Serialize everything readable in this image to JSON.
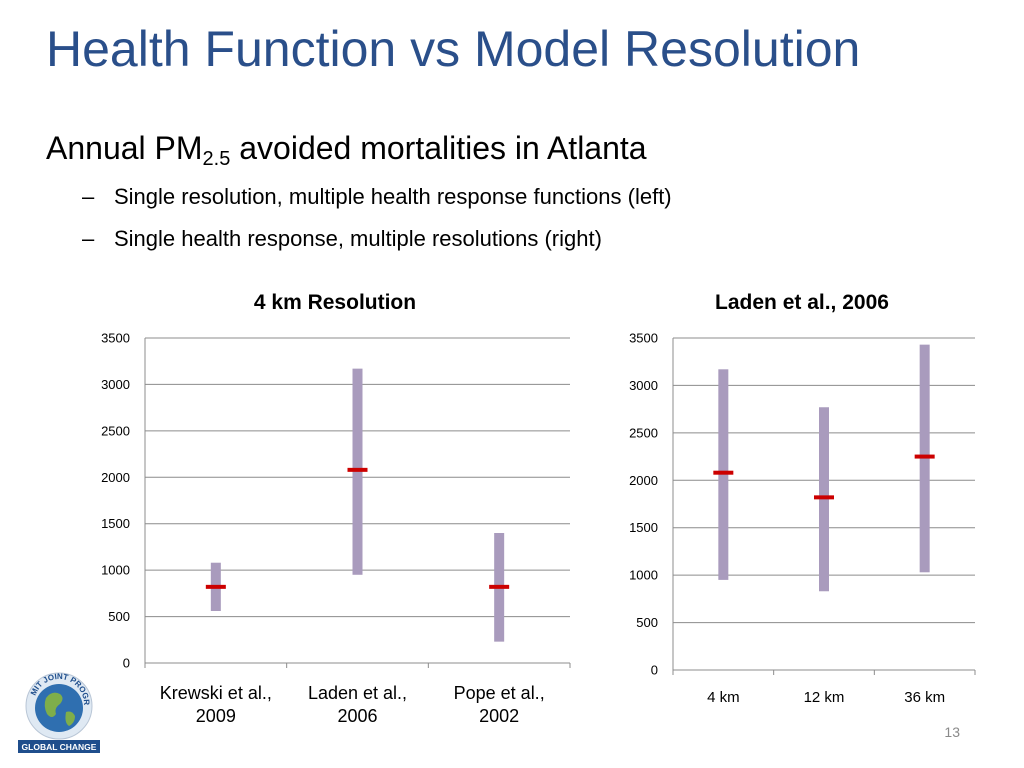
{
  "slide": {
    "title": "Health Function vs Model Resolution",
    "bullet_main": {
      "prefix": "Annual PM",
      "subscript": "2.5",
      "suffix": " avoided mortalities in Atlanta"
    },
    "sub_bullets": [
      "Single resolution, multiple health response functions (left)",
      "Single health response, multiple resolutions (right)"
    ],
    "page_number": "13"
  },
  "logo": {
    "top_text": "MIT JOINT PROGRAM",
    "bottom_text": "GLOBAL CHANGE"
  },
  "colors": {
    "title": "#2a4f8a",
    "range_bar": "#a99bbd",
    "central_mark": "#cc0000",
    "grid": "#8c8c8c"
  },
  "chart_data": [
    {
      "type": "range",
      "title": "4 km Resolution",
      "categories": [
        "Krewski et al., 2009",
        "Laden et al., 2006",
        "Pope et al., 2002"
      ],
      "category_lines": [
        [
          "Krewski et al.,",
          "2009"
        ],
        [
          "Laden et al.,",
          "2006"
        ],
        [
          "Pope et al.,",
          "2002"
        ]
      ],
      "low": [
        560,
        950,
        230
      ],
      "high": [
        1080,
        3170,
        1400
      ],
      "central": [
        820,
        2080,
        820
      ],
      "ylim": [
        0,
        3500
      ],
      "yticks": [
        0,
        500,
        1000,
        1500,
        2000,
        2500,
        3000,
        3500
      ],
      "grid": true,
      "xlabel": "",
      "ylabel": ""
    },
    {
      "type": "range",
      "title": "Laden et al., 2006",
      "categories": [
        "4 km",
        "12 km",
        "36 km"
      ],
      "category_lines": [
        [
          "4 km"
        ],
        [
          "12 km"
        ],
        [
          "36 km"
        ]
      ],
      "low": [
        950,
        830,
        1030
      ],
      "high": [
        3170,
        2770,
        3430
      ],
      "central": [
        2080,
        1820,
        2250
      ],
      "ylim": [
        0,
        3500
      ],
      "yticks": [
        0,
        500,
        1000,
        1500,
        2000,
        2500,
        3000,
        3500
      ],
      "grid": true,
      "xlabel": "",
      "ylabel": ""
    }
  ]
}
